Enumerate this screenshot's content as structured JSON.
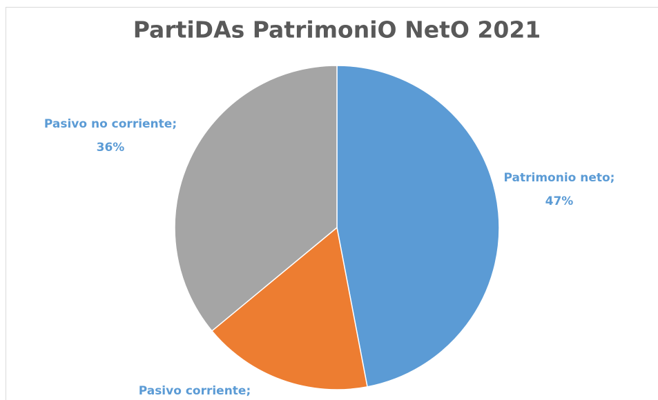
{
  "chart_data": {
    "type": "pie",
    "title": "PartiDAs PatrimoniO NetO 2021",
    "categories": [
      "Patrimonio neto;",
      "Pasivo corriente;",
      "Pasivo no corriente;"
    ],
    "values": [
      47,
      17,
      36
    ],
    "value_labels": [
      "47%",
      null,
      "36%"
    ],
    "colors": [
      "#5b9bd5",
      "#ed7d31",
      "#a5a5a5"
    ]
  }
}
